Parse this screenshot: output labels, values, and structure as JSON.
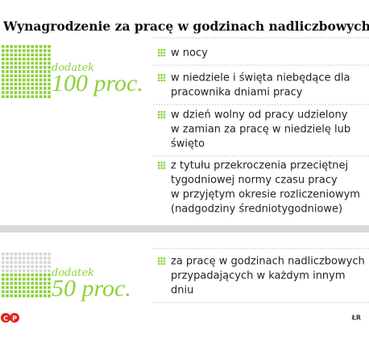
{
  "title": "Wynagrodzenie za pracę w godzinach nadliczbowych",
  "sections": [
    {
      "prefix": "dodatek",
      "amount": "100 proc.",
      "items": [
        {
          "lines": [
            "w nocy"
          ]
        },
        {
          "lines": [
            "w niedziele i święta niebędące dla",
            "pracownika dniami pracy"
          ]
        },
        {
          "lines": [
            "w dzień wolny od pracy udzielony",
            "w zamian za pracę w niedzielę lub",
            "święto"
          ]
        },
        {
          "lines": [
            "z tytułu przekroczenia przeciętnej",
            "tygodniowej normy czasu pracy",
            "w przyjętym okresie rozliczeniowym",
            "(nadgodziny średniotygodniowe)"
          ]
        }
      ]
    },
    {
      "prefix": "dodatek",
      "amount": "50 proc.",
      "items": [
        {
          "lines": [
            "za pracę w godzinach nadliczbowych",
            "przypadających w każdym innym",
            "dniu"
          ]
        }
      ]
    }
  ],
  "logo": [
    "C",
    "P"
  ],
  "source": "ŁR"
}
